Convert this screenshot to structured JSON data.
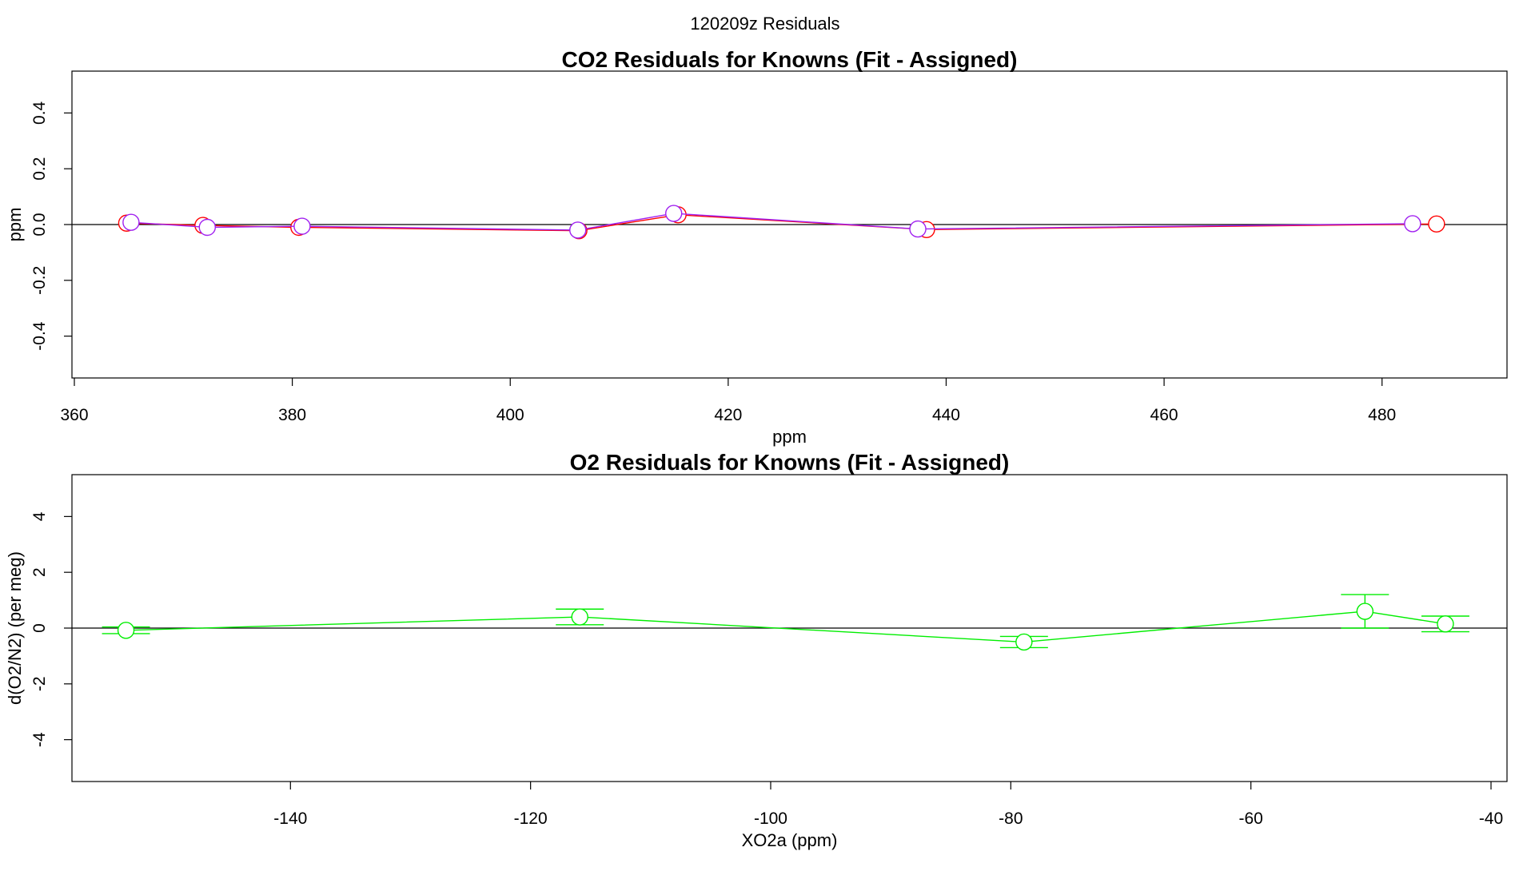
{
  "figure": {
    "title": "120209z  Residuals"
  },
  "chart_data": [
    {
      "type": "scatter",
      "title": "CO2 Residuals for Knowns (Fit - Assigned)",
      "xlabel": "ppm",
      "ylabel": "ppm",
      "xlim": [
        360,
        490
      ],
      "ylim": [
        -0.55,
        0.55
      ],
      "xticks": [
        360,
        380,
        400,
        420,
        440,
        460,
        480
      ],
      "yticks": [
        -0.4,
        -0.2,
        0.0,
        0.2,
        0.4
      ],
      "reference_line": 0,
      "series": [
        {
          "color": "#ff0000",
          "points": [
            {
              "x": 364.8,
              "y": 0.005
            },
            {
              "x": 371.8,
              "y": -0.003
            },
            {
              "x": 380.6,
              "y": -0.01
            },
            {
              "x": 406.3,
              "y": -0.022
            },
            {
              "x": 415.4,
              "y": 0.035
            },
            {
              "x": 438.2,
              "y": -0.018
            },
            {
              "x": 485.0,
              "y": 0.002
            }
          ]
        },
        {
          "color": "#a020f0",
          "points": [
            {
              "x": 365.2,
              "y": 0.008
            },
            {
              "x": 372.2,
              "y": -0.01
            },
            {
              "x": 380.9,
              "y": -0.006
            },
            {
              "x": 406.2,
              "y": -0.02
            },
            {
              "x": 415.0,
              "y": 0.04
            },
            {
              "x": 437.4,
              "y": -0.016
            },
            {
              "x": 482.8,
              "y": 0.003
            }
          ]
        }
      ]
    },
    {
      "type": "scatter",
      "title": "O2 Residuals for Knowns (Fit - Assigned)",
      "xlabel": "XO2a (ppm)",
      "ylabel": "d(O2/N2) (per meg)",
      "xlim": [
        -158,
        -40
      ],
      "ylim": [
        -5.5,
        5.5
      ],
      "xticks": [
        -140,
        -120,
        -100,
        -80,
        -60,
        -40
      ],
      "yticks": [
        -4,
        -2,
        0,
        2,
        4
      ],
      "reference_line": 0,
      "series": [
        {
          "color": "#00ee00",
          "error_bars": true,
          "points": [
            {
              "x": -153.7,
              "y": -0.08,
              "err": 0.12
            },
            {
              "x": -115.9,
              "y": 0.4,
              "err": 0.28
            },
            {
              "x": -78.9,
              "y": -0.5,
              "err": 0.2
            },
            {
              "x": -50.5,
              "y": 0.6,
              "err": 0.6
            },
            {
              "x": -43.8,
              "y": 0.15,
              "err": 0.28
            }
          ]
        }
      ]
    }
  ]
}
